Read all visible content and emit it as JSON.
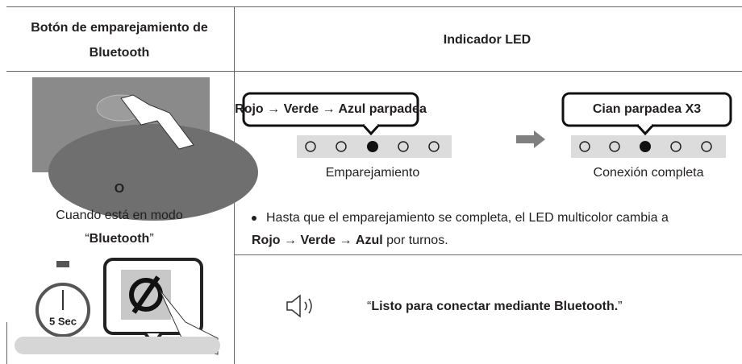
{
  "header": {
    "columns": [
      [
        "Botón de emparejamiento de",
        "Bluetooth"
      ],
      "Indicador LED"
    ]
  },
  "left": {
    "stopwatch": "5 Sec",
    "or": "O",
    "mode_line": "Cuando está en modo",
    "mode_name": [
      "“",
      "Bluetooth",
      "”"
    ]
  },
  "led": {
    "steps": [
      {
        "bubble": "Rojo → Verde → Azul parpadea",
        "caption": "Emparejamiento"
      },
      {
        "bubble": "Cian parpadea X3",
        "caption": "Conexión completa"
      }
    ]
  },
  "note": {
    "runs": [
      "Hasta que el emparejamiento se completa, el LED multicolor cambia a",
      "Rojo",
      " → ",
      "Verde",
      " → ",
      "Azul",
      " por turnos."
    ]
  },
  "voice": {
    "runs": [
      "“",
      "Listo para conectar mediante Bluetooth.",
      "”"
    ]
  }
}
